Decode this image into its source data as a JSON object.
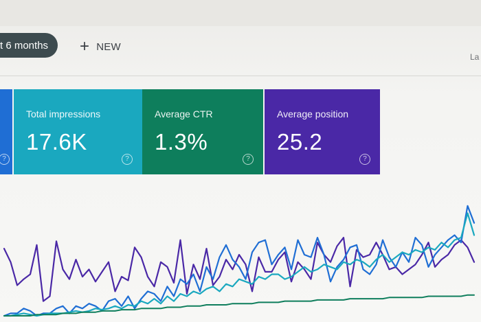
{
  "toolbar": {
    "date_range_label": "t 6 months",
    "new_label": "NEW",
    "right_text": "La"
  },
  "cards": [
    {
      "id": "total-clicks",
      "label": "",
      "value": "",
      "color": "#1f6ed4"
    },
    {
      "id": "total-impressions",
      "label": "Total impressions",
      "value": "17.6K",
      "color": "#1aa8bf"
    },
    {
      "id": "average-ctr",
      "label": "Average CTR",
      "value": "1.3%",
      "color": "#0e7e5c"
    },
    {
      "id": "average-position",
      "label": "Average position",
      "value": "25.2",
      "color": "#4a28a6"
    }
  ],
  "chart_data": {
    "type": "line",
    "xlabel": "",
    "ylabel": "",
    "grid": false,
    "legend": "none",
    "series": [
      {
        "color": "#4a28a6",
        "values": [
          55,
          44,
          25,
          30,
          34,
          58,
          12,
          16,
          61,
          38,
          30,
          46,
          32,
          38,
          28,
          36,
          44,
          20,
          32,
          29,
          56,
          48,
          32,
          24,
          44,
          40,
          27,
          62,
          18,
          42,
          30,
          55,
          25,
          32,
          46,
          38,
          50,
          42,
          20,
          48,
          36,
          36,
          46,
          52,
          28,
          44,
          38,
          30,
          60,
          50,
          44,
          57,
          64,
          24,
          54,
          48,
          50,
          60,
          50,
          38,
          40,
          34,
          38,
          42,
          50,
          60,
          40,
          46,
          50,
          58,
          62,
          56,
          44
        ]
      },
      {
        "color": "#1f6ed4",
        "values": [
          0,
          2,
          2,
          6,
          4,
          0,
          2,
          2,
          6,
          8,
          2,
          8,
          6,
          10,
          8,
          4,
          12,
          14,
          8,
          16,
          6,
          14,
          20,
          18,
          12,
          24,
          16,
          30,
          26,
          34,
          20,
          40,
          30,
          48,
          58,
          46,
          40,
          30,
          52,
          60,
          62,
          42,
          50,
          56,
          38,
          62,
          50,
          48,
          64,
          50,
          28,
          40,
          46,
          56,
          58,
          38,
          34,
          42,
          62,
          48,
          40,
          52,
          44,
          64,
          58,
          40,
          50,
          56,
          62,
          66,
          60,
          90,
          76
        ]
      },
      {
        "color": "#1aa8bf",
        "values": [
          0,
          0,
          1,
          2,
          1,
          0,
          1,
          2,
          2,
          2,
          3,
          4,
          3,
          4,
          6,
          5,
          6,
          8,
          6,
          9,
          8,
          12,
          10,
          14,
          10,
          16,
          12,
          18,
          16,
          20,
          18,
          22,
          24,
          20,
          26,
          24,
          30,
          28,
          26,
          32,
          30,
          34,
          34,
          30,
          32,
          36,
          40,
          36,
          38,
          42,
          40,
          38,
          44,
          42,
          46,
          44,
          40,
          46,
          50,
          44,
          48,
          52,
          50,
          54,
          52,
          56,
          54,
          60,
          56,
          62,
          64,
          84,
          66
        ]
      },
      {
        "color": "#0e7e5c",
        "values": [
          0,
          0,
          0,
          0,
          0,
          1,
          1,
          1,
          1,
          2,
          2,
          2,
          3,
          3,
          3,
          4,
          4,
          4,
          5,
          5,
          5,
          6,
          6,
          6,
          6,
          7,
          7,
          7,
          8,
          8,
          8,
          9,
          9,
          9,
          9,
          10,
          10,
          10,
          10,
          11,
          11,
          11,
          11,
          12,
          12,
          12,
          12,
          12,
          13,
          13,
          13,
          13,
          13,
          14,
          14,
          14,
          14,
          14,
          14,
          15,
          15,
          15,
          15,
          15,
          15,
          16,
          16,
          16,
          16,
          16,
          16,
          17,
          17
        ]
      }
    ],
    "ylim": [
      0,
      100
    ]
  }
}
